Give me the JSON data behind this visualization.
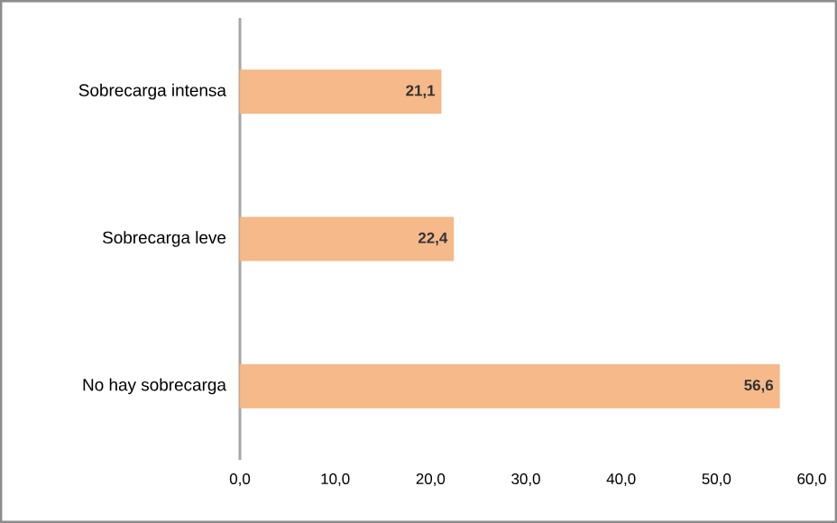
{
  "chart_data": {
    "type": "bar",
    "orientation": "horizontal",
    "categories": [
      "Sobrecarga intensa",
      "Sobrecarga leve",
      "No hay sobrecarga"
    ],
    "values": [
      21.1,
      22.4,
      56.6
    ],
    "value_labels": [
      "21,1",
      "22,4",
      "56,6"
    ],
    "color": "#f5b98a",
    "xlim": [
      0,
      60
    ],
    "xticks": [
      {
        "value": 0,
        "label": "0,0"
      },
      {
        "value": 10,
        "label": "10,0"
      },
      {
        "value": 20,
        "label": "20,0"
      },
      {
        "value": 30,
        "label": "30,0"
      },
      {
        "value": 40,
        "label": "40,0"
      },
      {
        "value": 50,
        "label": "50,0"
      },
      {
        "value": 60,
        "label": "60,0"
      }
    ]
  }
}
